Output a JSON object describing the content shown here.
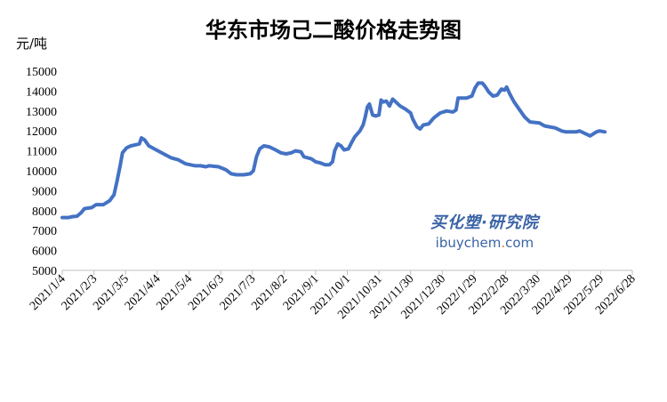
{
  "chart_data": {
    "type": "line",
    "title": "华东市场己二酸价格走势图",
    "ylabel": "元/吨",
    "ylim": [
      5000,
      15000
    ],
    "yticks": [
      5000,
      6000,
      7000,
      8000,
      9000,
      10000,
      11000,
      12000,
      13000,
      14000,
      15000
    ],
    "xlim": [
      "2021-01-04",
      "2022-06-28"
    ],
    "xticks": [
      "2021/1/4",
      "2021/2/3",
      "2021/3/5",
      "2021/4/4",
      "2021/5/4",
      "2021/6/3",
      "2021/7/3",
      "2021/8/2",
      "2021/9/1",
      "2021/10/1",
      "2021/10/31",
      "2021/11/30",
      "2021/12/30",
      "2022/1/29",
      "2022/2/28",
      "2022/3/30",
      "2022/4/29",
      "2022/5/29",
      "2022/6/28"
    ],
    "grid": false,
    "legend": "none",
    "series": [
      {
        "color": "#4472c4",
        "points": [
          [
            "2021-01-04",
            7650
          ],
          [
            "2021-01-10",
            7650
          ],
          [
            "2021-01-14",
            7700
          ],
          [
            "2021-01-18",
            7720
          ],
          [
            "2021-01-22",
            7900
          ],
          [
            "2021-01-25",
            8100
          ],
          [
            "2021-02-01",
            8150
          ],
          [
            "2021-02-05",
            8300
          ],
          [
            "2021-02-12",
            8300
          ],
          [
            "2021-02-18",
            8500
          ],
          [
            "2021-02-22",
            8800
          ],
          [
            "2021-02-25",
            9500
          ],
          [
            "2021-02-28",
            10300
          ],
          [
            "2021-03-02",
            10900
          ],
          [
            "2021-03-06",
            11150
          ],
          [
            "2021-03-10",
            11250
          ],
          [
            "2021-03-14",
            11300
          ],
          [
            "2021-03-18",
            11350
          ],
          [
            "2021-03-20",
            11650
          ],
          [
            "2021-03-23",
            11550
          ],
          [
            "2021-03-27",
            11250
          ],
          [
            "2021-04-03",
            11050
          ],
          [
            "2021-04-10",
            10850
          ],
          [
            "2021-04-17",
            10650
          ],
          [
            "2021-04-24",
            10550
          ],
          [
            "2021-05-01",
            10350
          ],
          [
            "2021-05-10",
            10250
          ],
          [
            "2021-05-15",
            10250
          ],
          [
            "2021-05-20",
            10200
          ],
          [
            "2021-05-23",
            10250
          ],
          [
            "2021-06-01",
            10200
          ],
          [
            "2021-06-08",
            10050
          ],
          [
            "2021-06-13",
            9850
          ],
          [
            "2021-06-18",
            9800
          ],
          [
            "2021-06-25",
            9800
          ],
          [
            "2021-07-01",
            9850
          ],
          [
            "2021-07-04",
            10000
          ],
          [
            "2021-07-07",
            10700
          ],
          [
            "2021-07-10",
            11100
          ],
          [
            "2021-07-14",
            11250
          ],
          [
            "2021-07-19",
            11200
          ],
          [
            "2021-07-25",
            11050
          ],
          [
            "2021-07-30",
            10900
          ],
          [
            "2021-08-04",
            10850
          ],
          [
            "2021-08-09",
            10900
          ],
          [
            "2021-08-13",
            11000
          ],
          [
            "2021-08-18",
            10950
          ],
          [
            "2021-08-21",
            10700
          ],
          [
            "2021-08-28",
            10600
          ],
          [
            "2021-09-01",
            10450
          ],
          [
            "2021-09-05",
            10400
          ],
          [
            "2021-09-10",
            10300
          ],
          [
            "2021-09-14",
            10300
          ],
          [
            "2021-09-17",
            10450
          ],
          [
            "2021-09-19",
            11000
          ],
          [
            "2021-09-22",
            11350
          ],
          [
            "2021-09-25",
            11250
          ],
          [
            "2021-09-28",
            11050
          ],
          [
            "2021-10-02",
            11100
          ],
          [
            "2021-10-05",
            11400
          ],
          [
            "2021-10-08",
            11700
          ],
          [
            "2021-10-13",
            12000
          ],
          [
            "2021-10-16",
            12300
          ],
          [
            "2021-10-18",
            12700
          ],
          [
            "2021-10-20",
            13200
          ],
          [
            "2021-10-22",
            13350
          ],
          [
            "2021-10-25",
            12800
          ],
          [
            "2021-10-28",
            12750
          ],
          [
            "2021-10-31",
            12800
          ],
          [
            "2021-11-02",
            13550
          ],
          [
            "2021-11-04",
            13450
          ],
          [
            "2021-11-07",
            13500
          ],
          [
            "2021-11-10",
            13250
          ],
          [
            "2021-11-13",
            13600
          ],
          [
            "2021-11-16",
            13450
          ],
          [
            "2021-11-20",
            13250
          ],
          [
            "2021-11-25",
            13100
          ],
          [
            "2021-11-30",
            12900
          ],
          [
            "2021-12-02",
            12600
          ],
          [
            "2021-12-06",
            12200
          ],
          [
            "2021-12-09",
            12100
          ],
          [
            "2021-12-12",
            12300
          ],
          [
            "2021-12-17",
            12350
          ],
          [
            "2021-12-22",
            12650
          ],
          [
            "2021-12-28",
            12900
          ],
          [
            "2022-01-03",
            13000
          ],
          [
            "2022-01-09",
            12950
          ],
          [
            "2022-01-12",
            13050
          ],
          [
            "2022-01-14",
            13650
          ],
          [
            "2022-01-22",
            13650
          ],
          [
            "2022-01-27",
            13750
          ],
          [
            "2022-01-30",
            14150
          ],
          [
            "2022-02-02",
            14400
          ],
          [
            "2022-02-06",
            14400
          ],
          [
            "2022-02-09",
            14200
          ],
          [
            "2022-02-12",
            13950
          ],
          [
            "2022-02-16",
            13750
          ],
          [
            "2022-02-20",
            13800
          ],
          [
            "2022-02-24",
            14100
          ],
          [
            "2022-02-27",
            14050
          ],
          [
            "2022-03-01",
            14200
          ],
          [
            "2022-03-04",
            13850
          ],
          [
            "2022-03-08",
            13450
          ],
          [
            "2022-03-14",
            13000
          ],
          [
            "2022-03-18",
            12700
          ],
          [
            "2022-03-23",
            12450
          ],
          [
            "2022-04-01",
            12400
          ],
          [
            "2022-04-06",
            12250
          ],
          [
            "2022-04-16",
            12150
          ],
          [
            "2022-04-22",
            12000
          ],
          [
            "2022-04-26",
            11950
          ],
          [
            "2022-05-06",
            11950
          ],
          [
            "2022-05-09",
            12000
          ],
          [
            "2022-05-13",
            11900
          ],
          [
            "2022-05-19",
            11750
          ],
          [
            "2022-05-22",
            11850
          ],
          [
            "2022-05-25",
            11950
          ],
          [
            "2022-05-28",
            12000
          ],
          [
            "2022-06-02",
            11950
          ]
        ]
      }
    ]
  },
  "watermark": {
    "text_cn": "买化塑·研究院",
    "text_en_prefix": "ibuychem",
    "text_en_dot": ".",
    "text_en_suffix": "com"
  }
}
